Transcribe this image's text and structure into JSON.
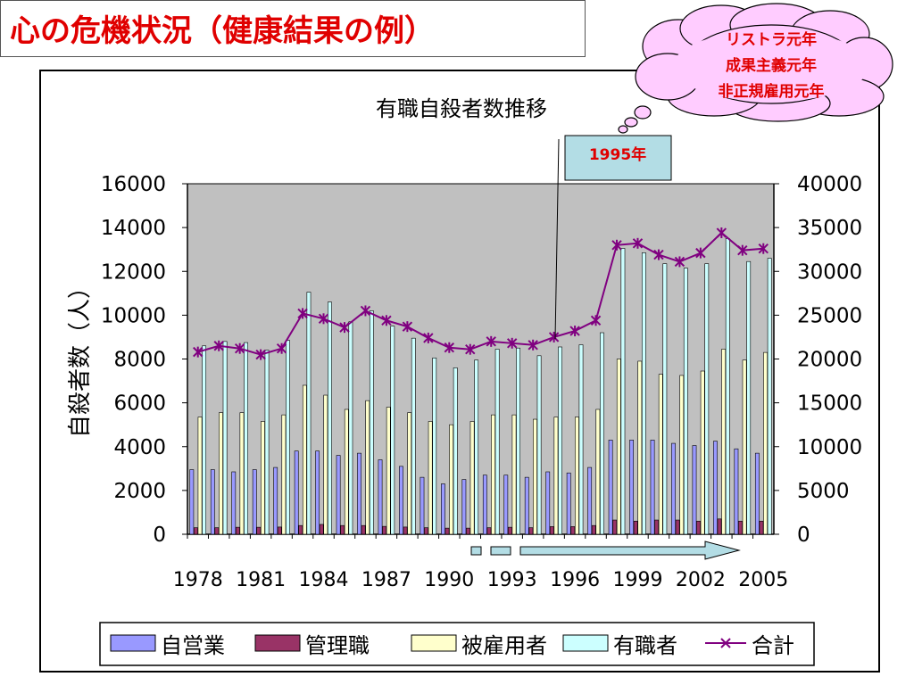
{
  "slide": {
    "title": "心の危機状況（健康結果の例）",
    "thought_bubble_lines": [
      "リストラ元年",
      "成果主義元年",
      "非正規雇用元年"
    ],
    "callout": "1995年"
  },
  "colors": {
    "title": "#e00000",
    "plot_bg": "#c0c0c0",
    "self_employed": "#9999ff",
    "manager": "#993366",
    "employee": "#ffffcc",
    "employed": "#ccffff",
    "total_line": "#800080",
    "bubble_fill": "#ffccff",
    "callout_fill": "#b3dde5",
    "arrow_fill": "#b3dde5"
  },
  "chart_data": {
    "type": "bar",
    "title": "有職自殺者数推移",
    "ylabel": "自殺者数（人）",
    "ylim": [
      0,
      16000
    ],
    "y2lim": [
      0,
      40000
    ],
    "y_ticks": [
      "0",
      "2000",
      "4000",
      "6000",
      "8000",
      "10000",
      "12000",
      "14000",
      "16000"
    ],
    "y2_ticks": [
      "0",
      "5000",
      "10000",
      "15000",
      "20000",
      "25000",
      "30000",
      "35000",
      "40000"
    ],
    "x_tick_labels": [
      "1978",
      "1981",
      "1984",
      "1987",
      "1990",
      "1993",
      "1996",
      "1999",
      "2002",
      "2005"
    ],
    "categories": [
      "1978",
      "1979",
      "1980",
      "1981",
      "1982",
      "1983",
      "1984",
      "1985",
      "1986",
      "1987",
      "1988",
      "1989",
      "1990",
      "1991",
      "1992",
      "1993",
      "1994",
      "1995",
      "1996",
      "1997",
      "1998",
      "1999",
      "2000",
      "2001",
      "2002",
      "2003",
      "2004",
      "2005"
    ],
    "series": [
      {
        "name": "自営業",
        "axis": "left",
        "type": "bar",
        "values": [
          2950,
          2950,
          2850,
          2950,
          3050,
          3800,
          3800,
          3600,
          3700,
          3400,
          3100,
          2600,
          2300,
          2500,
          2700,
          2700,
          2600,
          2850,
          2800,
          3050,
          4300,
          4300,
          4300,
          4150,
          4050,
          4250,
          3900,
          3700
        ]
      },
      {
        "name": "管理職",
        "axis": "left",
        "type": "bar",
        "values": [
          300,
          300,
          320,
          320,
          330,
          400,
          450,
          400,
          400,
          360,
          330,
          300,
          280,
          280,
          300,
          320,
          300,
          350,
          350,
          400,
          650,
          600,
          650,
          650,
          600,
          700,
          600,
          600
        ]
      },
      {
        "name": "被雇用者",
        "axis": "left",
        "type": "bar",
        "values": [
          5350,
          5550,
          5550,
          5150,
          5450,
          6800,
          6350,
          5700,
          6100,
          5800,
          5550,
          5150,
          5000,
          5150,
          5450,
          5450,
          5250,
          5350,
          5350,
          5700,
          8000,
          7900,
          7300,
          7250,
          7450,
          8450,
          7950,
          8300
        ]
      },
      {
        "name": "有職者",
        "axis": "left",
        "type": "bar",
        "values": [
          8600,
          8800,
          8750,
          8400,
          8850,
          11050,
          10600,
          9700,
          10200,
          9500,
          8950,
          8050,
          7600,
          7950,
          8450,
          8500,
          8150,
          8550,
          8650,
          9200,
          13050,
          12850,
          12350,
          12150,
          12350,
          13500,
          12450,
          12600
        ]
      },
      {
        "name": "合計",
        "axis": "right",
        "type": "line",
        "values": [
          20800,
          21500,
          21200,
          20500,
          21200,
          25200,
          24600,
          23600,
          25500,
          24400,
          23700,
          22400,
          21300,
          21100,
          22000,
          21800,
          21600,
          22500,
          23200,
          24400,
          33000,
          33200,
          31900,
          31100,
          32100,
          34400,
          32400,
          32600
        ]
      }
    ],
    "legend_position": "bottom",
    "grid": false
  }
}
